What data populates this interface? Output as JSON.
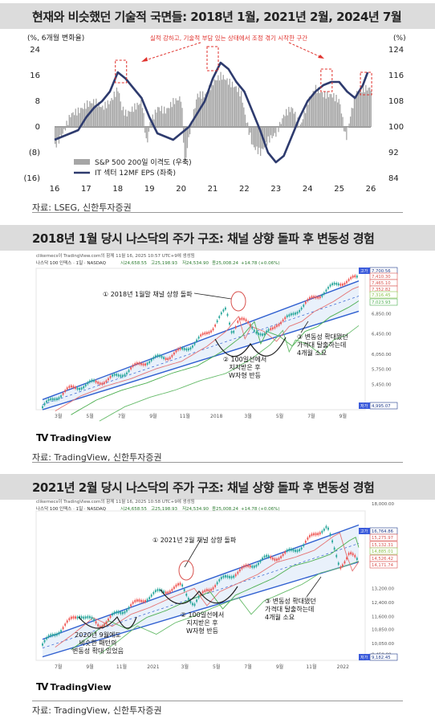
{
  "sections": [
    {
      "title": "현재와 비슷했던 기술적 국면들: 2018년 1월, 2021년 2월, 2024년 7월",
      "source": "자료: LSEG, 신한투자증권"
    },
    {
      "title": "2018년 1월 당시 나스닥의 주가 구조: 채널 상향 돌파 후 변동성 경험",
      "source": "자료: TradingView, 신한투자증권"
    },
    {
      "title": "2021년 2월 당시 나스닥의 주가 구조: 채널 상향 돌파 후 변동성 경험",
      "source": "자료: TradingView, 신한투자증권"
    }
  ],
  "chart_data": [
    {
      "type": "line",
      "left_axis_label": "(%, 6개월 변화율)",
      "right_axis_label": "(%)",
      "left_ticks": [
        "24",
        "16",
        "8",
        "0",
        "(8)",
        "(16)"
      ],
      "left_tick_values": [
        24,
        16,
        8,
        0,
        -8,
        -16
      ],
      "right_ticks": [
        "124",
        "116",
        "108",
        "100",
        "92",
        "84"
      ],
      "x_ticks": [
        "16",
        "17",
        "18",
        "19",
        "20",
        "21",
        "22",
        "23",
        "24",
        "25",
        "26"
      ],
      "annotation": "실적 강하고, 기술적 부담 있는 상태에서 조정 겪기 시작한 구간",
      "series": [
        {
          "name": "S&P 500 200일 이격도 (우축)",
          "color": "#a6a6a6",
          "x": [
            16.0,
            16.25,
            16.5,
            16.75,
            17.0,
            17.25,
            17.5,
            17.75,
            18.0,
            18.1,
            18.25,
            18.5,
            18.75,
            18.9,
            19.0,
            19.25,
            19.5,
            19.75,
            20.0,
            20.1,
            20.25,
            20.5,
            20.75,
            21.0,
            21.25,
            21.5,
            21.75,
            21.9,
            22.0,
            22.25,
            22.5,
            22.75,
            23.0,
            23.25,
            23.5,
            23.75,
            24.0,
            24.25,
            24.5,
            24.75,
            25.0,
            25.2,
            25.35,
            25.5,
            25.75,
            25.9
          ],
          "values": [
            94,
            98,
            104,
            105,
            107,
            108,
            106,
            108,
            112,
            106,
            104,
            106,
            108,
            94,
            101,
            106,
            105,
            108,
            109,
            88,
            98,
            110,
            110,
            114,
            116,
            114,
            112,
            110,
            104,
            94,
            92,
            96,
            98,
            104,
            106,
            100,
            108,
            112,
            110,
            110,
            108,
            96,
            104,
            110,
            112,
            112
          ]
        },
        {
          "name": "IT 섹터 12MF EPS (좌축)",
          "color": "#2e3b6e",
          "x": [
            16.0,
            16.25,
            16.5,
            16.75,
            17.0,
            17.25,
            17.5,
            17.75,
            18.0,
            18.25,
            18.5,
            18.75,
            19.0,
            19.25,
            19.5,
            19.75,
            20.0,
            20.25,
            20.5,
            20.75,
            21.0,
            21.25,
            21.5,
            21.75,
            22.0,
            22.25,
            22.5,
            22.75,
            23.0,
            23.25,
            23.5,
            23.75,
            24.0,
            24.25,
            24.5,
            24.75,
            25.0,
            25.25,
            25.5,
            25.75,
            25.9
          ],
          "values": [
            -4,
            -3,
            -2,
            -1,
            3,
            6,
            8,
            11,
            17,
            15,
            12,
            9,
            3,
            -2,
            -3,
            -4,
            -2,
            0,
            4,
            8,
            15,
            20,
            18,
            14,
            11,
            5,
            -1,
            -8,
            -11,
            -9,
            -3,
            3,
            8,
            11,
            13,
            14,
            14,
            11,
            9,
            13,
            17
          ]
        }
      ],
      "highlights_x": [
        18.1,
        21.0,
        24.6,
        25.85
      ]
    },
    {
      "type": "line",
      "header": "clikernecs이 TradingView.com의 함께 11월 16, 2025 10:57 UTC+9에 생성됨",
      "ticker": "나스닥 100 인덱스 · 1일 · NASDAQ",
      "ohlc": {
        "o": "시24,658.55",
        "h": "고25,198.93",
        "l": "저24,534.90",
        "c": "종25,008.24",
        "chg": "+14.78 (+0.06%)"
      },
      "price_ticks": [
        "6,850.00",
        "6,450.00",
        "6,050.00",
        "5,750.00",
        "5,450.00",
        "5,050.00"
      ],
      "price_tick_values": [
        6850,
        6450,
        6050,
        5750,
        5450,
        5050
      ],
      "right_labels": [
        {
          "text": "7,700.56",
          "tag": "고가",
          "color": "#1e3a8a"
        },
        {
          "text": "7,410.30",
          "tag": "",
          "color": "#d9534f"
        },
        {
          "text": "7,465.10",
          "tag": "",
          "color": "#d9534f"
        },
        {
          "text": "7,352.82",
          "tag": "",
          "color": "#d9534f"
        },
        {
          "text": "7,316.45",
          "tag": "",
          "color": "#8bc34a"
        },
        {
          "text": "7,023.93",
          "tag": "",
          "color": "#4caf50"
        },
        {
          "text": "4,995.07",
          "tag": "저가",
          "color": "#1e3a8a"
        }
      ],
      "x_ticks": [
        "3월",
        "5월",
        "7월",
        "9월",
        "11월",
        "2018",
        "3월",
        "5월",
        "7월",
        "9월"
      ],
      "annotations": [
        "① 2018년 1월말 채널 상향 돌파",
        "② 100일선에서\n지지받은 후\nW자형 반등",
        "③ 변동성 확대됐던\n가격대 탈출하는데\n4개월 소요"
      ],
      "series": [
        {
          "x": [
            0,
            0.08,
            0.16,
            0.24,
            0.32,
            0.4,
            0.48,
            0.54,
            0.58,
            0.6,
            0.62,
            0.66,
            0.7,
            0.74,
            0.78,
            0.82,
            0.88,
            0.94,
            1.0
          ],
          "values": [
            5000,
            5300,
            5500,
            5650,
            5850,
            6000,
            6300,
            6600,
            6900,
            6450,
            6700,
            6600,
            6400,
            6700,
            6800,
            7000,
            7200,
            7450,
            7600
          ]
        }
      ],
      "logo": "TradingView"
    },
    {
      "type": "line",
      "header": "clikernecs이 TradingView.com의 함께 11월 16, 2025 10:58 UTC+9에 생성됨",
      "ticker": "나스닥 100 인덱스 · 1일 · NASDAQ",
      "ohlc": {
        "o": "시24,658.55",
        "h": "고25,198.93",
        "l": "저24,534.90",
        "c": "종25,008.24",
        "chg": "+14.78 (+0.06%)"
      },
      "price_ticks": [
        "18,000.00",
        "13,200.00",
        "12,400.00",
        "11,600.00",
        "10,850.00",
        "10,050.00",
        "9,450.00"
      ],
      "price_tick_values": [
        18000,
        13200,
        12400,
        11600,
        10850,
        10050,
        9450
      ],
      "right_labels": [
        {
          "text": "16,764.86",
          "tag": "고가",
          "color": "#1e3a8a"
        },
        {
          "text": "15,275.97",
          "tag": "",
          "color": "#d9534f"
        },
        {
          "text": "15,132.31",
          "tag": "",
          "color": "#d9534f"
        },
        {
          "text": "14,885.01",
          "tag": "",
          "color": "#8bc34a"
        },
        {
          "text": "14,526.42",
          "tag": "",
          "color": "#d9534f"
        },
        {
          "text": "14,171.74",
          "tag": "",
          "color": "#d9534f"
        },
        {
          "text": "9,182.45",
          "tag": "저가",
          "color": "#1e3a8a"
        }
      ],
      "x_ticks": [
        "7월",
        "9월",
        "11월",
        "2021",
        "3월",
        "5월",
        "7월",
        "9월",
        "11월",
        "2022"
      ],
      "annotations": [
        "① 2021년 2월 채널 상향 돌파",
        "② 100일선에서\n지지받은 후\nW자형 반등",
        "③ 변동성 확대됐던\n가격대 탈출하는데\n4개월 소요",
        "2020년 9월에도\n비슷한 패턴의\n변동성 확대 있었음"
      ],
      "series": [
        {
          "x": [
            0,
            0.06,
            0.12,
            0.18,
            0.24,
            0.3,
            0.36,
            0.4,
            0.44,
            0.48,
            0.52,
            0.58,
            0.64,
            0.7,
            0.76,
            0.82,
            0.88,
            0.9,
            0.92,
            0.94,
            0.97,
            1.0
          ],
          "values": [
            10000,
            10800,
            11700,
            11200,
            11900,
            12300,
            12800,
            13100,
            13400,
            12400,
            13200,
            13700,
            14200,
            14900,
            15200,
            15600,
            16400,
            16600,
            15400,
            14400,
            15200,
            14800
          ]
        }
      ],
      "logo": "TradingView"
    }
  ]
}
